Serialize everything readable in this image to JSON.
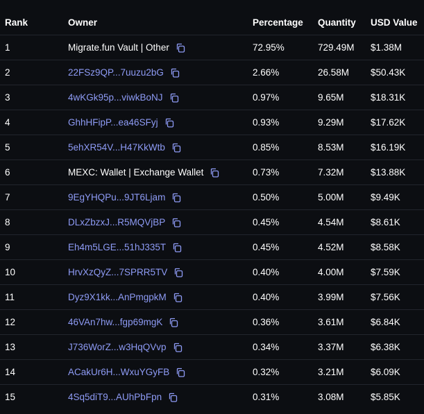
{
  "header": {
    "rank": "Rank",
    "owner": "Owner",
    "percentage": "Percentage",
    "quantity": "Quantity",
    "usd_value": "USD Value"
  },
  "rows": [
    {
      "rank": "1",
      "owner": "Migrate.fun Vault | Other",
      "is_link": false,
      "percentage": "72.95%",
      "quantity": "729.49M",
      "usd": "$1.38M"
    },
    {
      "rank": "2",
      "owner": "22FSz9QP...7uuzu2bG",
      "is_link": true,
      "percentage": "2.66%",
      "quantity": "26.58M",
      "usd": "$50.43K"
    },
    {
      "rank": "3",
      "owner": "4wKGk95p...viwkBoNJ",
      "is_link": true,
      "percentage": "0.97%",
      "quantity": "9.65M",
      "usd": "$18.31K"
    },
    {
      "rank": "4",
      "owner": "GhhHFipP...ea46SFyj",
      "is_link": true,
      "percentage": "0.93%",
      "quantity": "9.29M",
      "usd": "$17.62K"
    },
    {
      "rank": "5",
      "owner": "5ehXR54V...H47KkWtb",
      "is_link": true,
      "percentage": "0.85%",
      "quantity": "8.53M",
      "usd": "$16.19K"
    },
    {
      "rank": "6",
      "owner": "MEXC: Wallet | Exchange Wallet",
      "is_link": false,
      "percentage": "0.73%",
      "quantity": "7.32M",
      "usd": "$13.88K"
    },
    {
      "rank": "7",
      "owner": "9EgYHQPu...9JT6Ljam",
      "is_link": true,
      "percentage": "0.50%",
      "quantity": "5.00M",
      "usd": "$9.49K"
    },
    {
      "rank": "8",
      "owner": "DLxZbzxJ...R5MQVjBP",
      "is_link": true,
      "percentage": "0.45%",
      "quantity": "4.54M",
      "usd": "$8.61K"
    },
    {
      "rank": "9",
      "owner": "Eh4m5LGE...51hJ335T",
      "is_link": true,
      "percentage": "0.45%",
      "quantity": "4.52M",
      "usd": "$8.58K"
    },
    {
      "rank": "10",
      "owner": "HrvXzQyZ...7SPRR5TV",
      "is_link": true,
      "percentage": "0.40%",
      "quantity": "4.00M",
      "usd": "$7.59K"
    },
    {
      "rank": "11",
      "owner": "Dyz9X1kk...AnPmgpkM",
      "is_link": true,
      "percentage": "0.40%",
      "quantity": "3.99M",
      "usd": "$7.56K"
    },
    {
      "rank": "12",
      "owner": "46VAn7hw...fgp69mgK",
      "is_link": true,
      "percentage": "0.36%",
      "quantity": "3.61M",
      "usd": "$6.84K"
    },
    {
      "rank": "13",
      "owner": "J736WorZ...w3HqQVvp",
      "is_link": true,
      "percentage": "0.34%",
      "quantity": "3.37M",
      "usd": "$6.38K"
    },
    {
      "rank": "14",
      "owner": "ACakUr6H...WxuYGyFB",
      "is_link": true,
      "percentage": "0.32%",
      "quantity": "3.21M",
      "usd": "$6.09K"
    },
    {
      "rank": "15",
      "owner": "4Sq5diT9...AUhPbFpn",
      "is_link": true,
      "percentage": "0.31%",
      "quantity": "3.08M",
      "usd": "$5.85K"
    }
  ],
  "icons": {
    "copy": "copy-icon"
  },
  "colors": {
    "background": "#0c0e12",
    "link": "#8e9bf5",
    "text": "#ffffff",
    "divider": "#22252d"
  }
}
